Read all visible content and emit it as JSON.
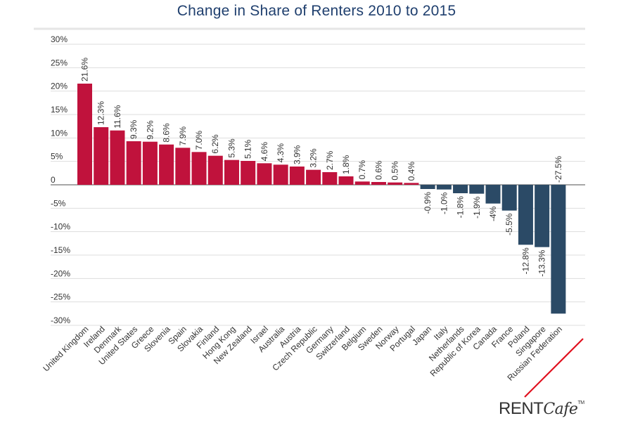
{
  "chart_data": {
    "type": "bar",
    "title": "Change in Share of Renters 2010 to 2015",
    "xlabel": "",
    "ylabel": "",
    "ylim": [
      -30,
      30
    ],
    "yticks": [
      30,
      25,
      20,
      15,
      10,
      5,
      0,
      -5,
      -10,
      -15,
      -20,
      -25,
      -30
    ],
    "ytick_labels": [
      "30%",
      "25%",
      "20%",
      "15%",
      "10%",
      "5%",
      "0",
      "-5%",
      "-10%",
      "-15%",
      "-20%",
      "-25%",
      "-30%"
    ],
    "grid": true,
    "legend": "none",
    "categories": [
      "United Kingdom",
      "Ireland",
      "Denmark",
      "United States",
      "Greece",
      "Slovenia",
      "Spain",
      "Slovakia",
      "Finland",
      "Hong Kong",
      "New Zealand",
      "Israel",
      "Australia",
      "Austria",
      "Czech Republic",
      "Germany",
      "Switzerland",
      "Belgium",
      "Sweden",
      "Norway",
      "Portugal",
      "Japan",
      "Italy",
      "Netherlands",
      "Republic of Korea",
      "Canada",
      "France",
      "Poland",
      "Singapore",
      "Russian Federation"
    ],
    "values": [
      21.6,
      12.3,
      11.6,
      9.3,
      9.2,
      8.6,
      7.9,
      7.0,
      6.2,
      5.3,
      5.1,
      4.6,
      4.3,
      3.9,
      3.2,
      2.7,
      1.8,
      0.7,
      0.6,
      0.5,
      0.4,
      -0.9,
      -1.0,
      -1.8,
      -1.9,
      -4,
      -5.5,
      -12.8,
      -13.3,
      -27.5
    ],
    "data_labels": [
      "21.6%",
      "12.3%",
      "11.6%",
      "9.3%",
      "9.2%",
      "8.6%",
      "7.9%",
      "7.0%",
      "6.2%",
      "5.3%",
      "5.1%",
      "4.6%",
      "4.3%",
      "3.9%",
      "3.2%",
      "2.7%",
      "1.8%",
      "0.7%",
      "0.6%",
      "0.5%",
      "0.4%",
      "-0.9%",
      "-1.0%",
      "-1.8%",
      "-1.9%",
      "-4%",
      "-5.5%",
      "-12.8%",
      "-13.3%",
      "-27.5%"
    ],
    "colors": {
      "positive": "#c0123c",
      "negative": "#2b4a66",
      "highlight_underline": "#e0101e",
      "title": "#1f3f6e"
    },
    "highlighted_category": "Russian Federation"
  },
  "branding": {
    "logo_rent": "RENT",
    "logo_cafe": "Cafe",
    "logo_tm": "TM"
  }
}
